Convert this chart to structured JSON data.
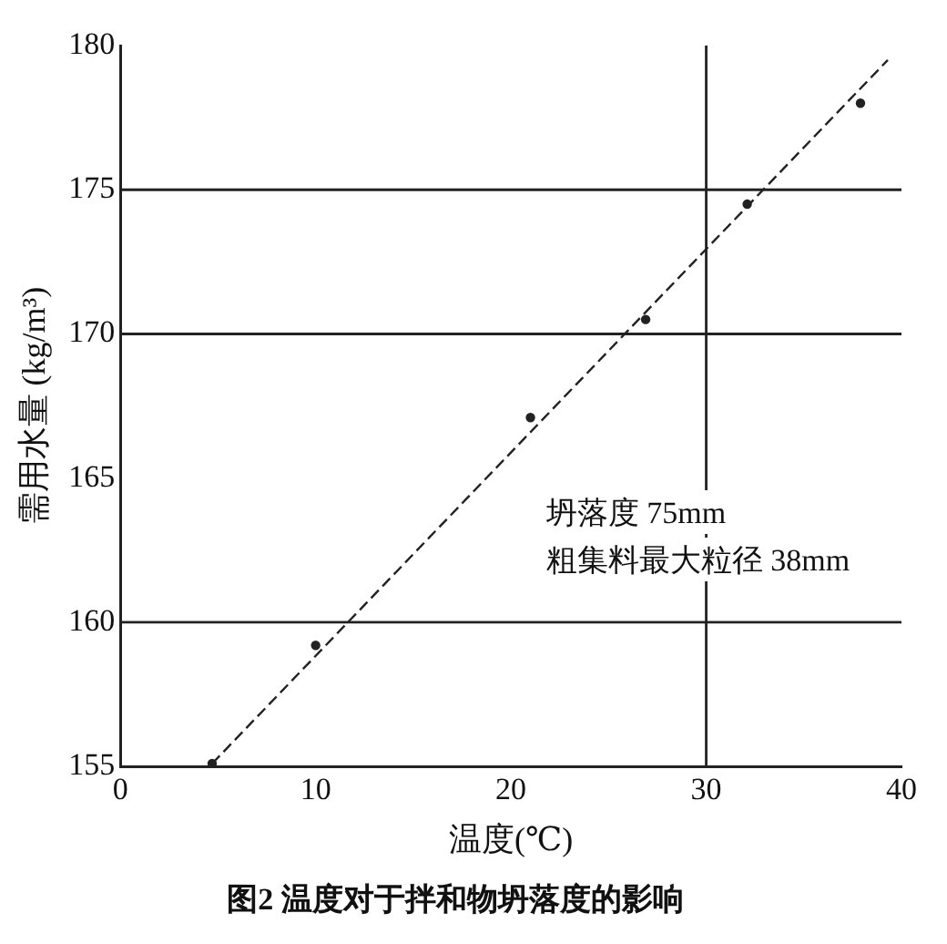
{
  "chart_data": {
    "type": "scatter",
    "title": "图2 温度对于拌和物坍落度的影响",
    "xlabel": "温度(℃)",
    "ylabel": "需用水量 (kg/m³)",
    "annotations": [
      "坍落度 75mm",
      "粗集料最大粒径 38mm"
    ],
    "series": [
      {
        "color": "#222222",
        "x": [
          4.7,
          10,
          21,
          26.9,
          32.1,
          37.9
        ],
        "values": [
          155.1,
          159.2,
          167.1,
          170.5,
          174.5,
          178.0
        ],
        "marker": "circle"
      },
      {
        "type": "line",
        "color": "#222222",
        "x": [
          4.7,
          39.3
        ],
        "values": [
          155.1,
          179.5
        ],
        "line_style": "dashed",
        "marker": "none"
      }
    ],
    "xlim": [
      0,
      40
    ],
    "xticks": [
      0,
      10,
      20,
      30,
      40
    ],
    "ylim": [
      155,
      180
    ],
    "yticks": [
      155,
      160,
      165,
      170,
      175,
      180
    ],
    "ref_lines": [
      {
        "axis": "y",
        "value": 160
      },
      {
        "axis": "y",
        "value": 170
      },
      {
        "axis": "y",
        "value": 175
      },
      {
        "axis": "x",
        "value": 30
      }
    ],
    "grid": false,
    "legend": false
  }
}
